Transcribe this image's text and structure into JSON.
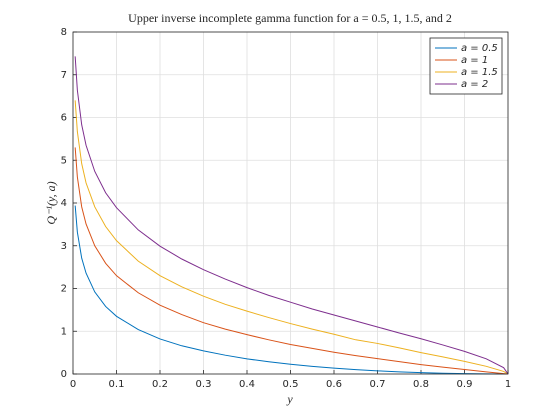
{
  "chart_data": {
    "type": "line",
    "title": "Upper inverse incomplete gamma function for a = 0.5, 1, 1.5, and 2",
    "xlabel": "y",
    "ylabel": "Q⁻¹(y, a)",
    "x": [
      0.005,
      0.01,
      0.02,
      0.03,
      0.05,
      0.075,
      0.1,
      0.15,
      0.2,
      0.25,
      0.3,
      0.35,
      0.4,
      0.45,
      0.5,
      0.55,
      0.6,
      0.65,
      0.7,
      0.75,
      0.8,
      0.85,
      0.9,
      0.95,
      0.99,
      1
    ],
    "series": [
      {
        "name": "a = 0.5",
        "color": "#0072bd",
        "values": [
          3.94,
          3.32,
          2.71,
          2.36,
          1.92,
          1.58,
          1.35,
          1.04,
          0.82,
          0.66,
          0.54,
          0.44,
          0.354,
          0.286,
          0.227,
          0.179,
          0.138,
          0.103,
          0.074,
          0.051,
          0.032,
          0.018,
          0.008,
          0.002,
          0,
          0
        ]
      },
      {
        "name": "a = 1",
        "color": "#d95319",
        "values": [
          5.3,
          4.61,
          3.91,
          3.51,
          3.0,
          2.59,
          2.3,
          1.9,
          1.61,
          1.39,
          1.2,
          1.05,
          0.92,
          0.8,
          0.69,
          0.6,
          0.51,
          0.43,
          0.36,
          0.29,
          0.22,
          0.16,
          0.105,
          0.05,
          0.01,
          0
        ]
      },
      {
        "name": "a = 1.5",
        "color": "#edb120",
        "values": [
          6.4,
          5.67,
          4.92,
          4.47,
          3.91,
          3.45,
          3.12,
          2.64,
          2.3,
          2.04,
          1.82,
          1.63,
          1.47,
          1.32,
          1.18,
          1.05,
          0.93,
          0.8,
          0.715,
          0.61,
          0.5,
          0.4,
          0.295,
          0.18,
          0.06,
          0
        ]
      },
      {
        "name": "a = 2",
        "color": "#7e2f8e",
        "values": [
          7.43,
          6.64,
          5.83,
          5.35,
          4.74,
          4.24,
          3.89,
          3.37,
          2.99,
          2.69,
          2.44,
          2.22,
          2.02,
          1.84,
          1.68,
          1.52,
          1.38,
          1.24,
          1.1,
          0.96,
          0.824,
          0.68,
          0.53,
          0.355,
          0.148,
          0
        ]
      }
    ],
    "xlim": [
      0,
      1
    ],
    "xticks": [
      0,
      0.1,
      0.2,
      0.3,
      0.4,
      0.5,
      0.6,
      0.7,
      0.8,
      0.9,
      1
    ],
    "ylim": [
      0,
      8
    ],
    "yticks": [
      0,
      1,
      2,
      3,
      4,
      5,
      6,
      7,
      8
    ],
    "grid": true,
    "legend": "northeast"
  }
}
